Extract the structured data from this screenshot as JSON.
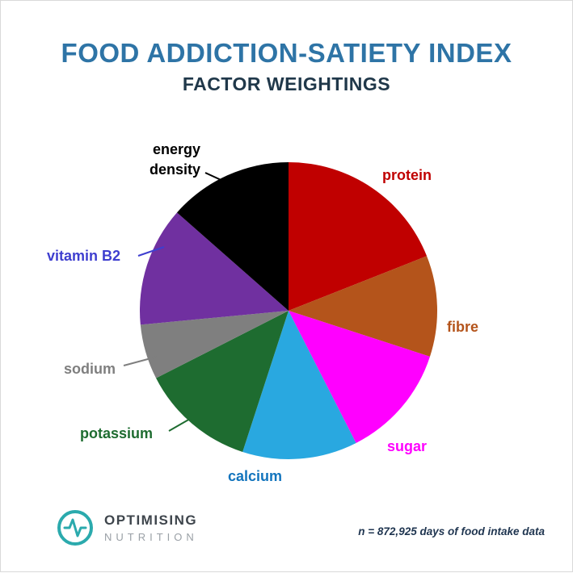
{
  "header": {
    "title": "FOOD ADDICTION-SATIETY INDEX",
    "subtitle": "FACTOR WEIGHTINGS",
    "title_color": "#2E74A6",
    "subtitle_color": "#20384A"
  },
  "chart_data": {
    "type": "pie",
    "title": "Food Addiction-Satiety Index — Factor Weightings",
    "start_angle_deg": -90,
    "direction": "clockwise",
    "units": "percent (estimated from slice angles)",
    "slices": [
      {
        "label": "protein",
        "value": 19,
        "color": "#C00000"
      },
      {
        "label": "fibre",
        "value": 11,
        "color": "#B4541B"
      },
      {
        "label": "sugar",
        "value": 12.5,
        "color": "#FF00FF"
      },
      {
        "label": "calcium",
        "value": 12.5,
        "color": "#29A8E0",
        "label_color": "#1274BD"
      },
      {
        "label": "potassium",
        "value": 12.5,
        "color": "#1E6C30"
      },
      {
        "label": "sodium",
        "value": 6,
        "color": "#7F7F7F"
      },
      {
        "label": "vitamin B2",
        "value": 13,
        "color": "#7030A0",
        "label_color": "#3E3ECF"
      },
      {
        "label": "energy density",
        "value": 13.5,
        "color": "#000000"
      }
    ],
    "legend_position": "around-pie",
    "grid": false
  },
  "footer": {
    "logo_text_primary": "OPTIMISING",
    "logo_text_secondary": "NUTRITION",
    "logo_color": "#2BAAAD",
    "note": "n = 872,925 days of food intake data"
  }
}
